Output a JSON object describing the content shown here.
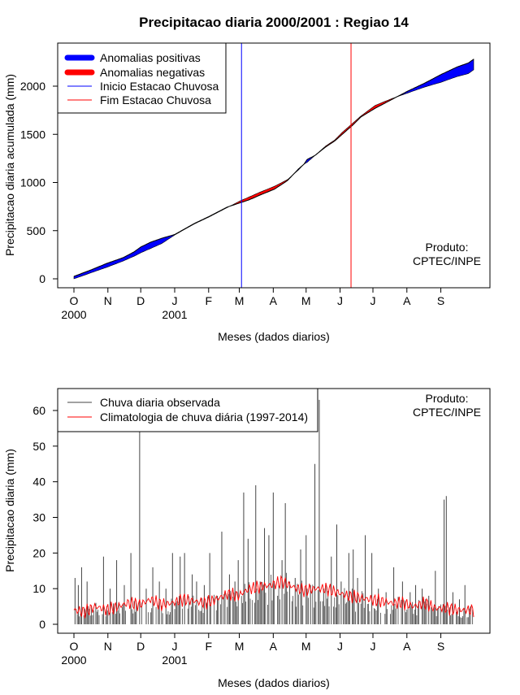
{
  "title": "Precipitacao diaria 2000/2001 : Regiao 14",
  "credit": {
    "line1": "Produto:",
    "line2": "CPTEC/INPE"
  },
  "month_ticks": [
    "O",
    "N",
    "D",
    "J",
    "F",
    "M",
    "A",
    "M",
    "J",
    "J",
    "A",
    "S"
  ],
  "year_labels": [
    "2000",
    "2001"
  ],
  "colors": {
    "positive": "#0000ff",
    "negative": "#ff0000",
    "onset": "#0000ff",
    "end": "#ff0000",
    "observed": "#444444",
    "climatology": "#ff0000"
  },
  "chart_data": [
    {
      "type": "area",
      "title": "Precipitacao diaria 2000/2001 : Regiao 14",
      "xlabel": "Meses (dados diarios)",
      "ylabel": "Precipitacao diaria acumulada (mm)",
      "x_unit": "day index (0 = 1 Oct 2000)",
      "xlim": [
        0,
        365
      ],
      "ylim": [
        0,
        2300
      ],
      "yticks": [
        0,
        500,
        1000,
        1500,
        2000
      ],
      "legend": [
        "Anomalias positivas",
        "Anomalias negativas",
        "Inicio Estacao Chuvosa",
        "Fim Estacao Chuvosa"
      ],
      "legend_position": "top-left",
      "climatology_cumulative": {
        "x": [
          0,
          15,
          30,
          45,
          55,
          61,
          70,
          80,
          92,
          110,
          123,
          140,
          152,
          160,
          170,
          183,
          195,
          200,
          205,
          210,
          213,
          220,
          230,
          238,
          245,
          255,
          262,
          275,
          290,
          305,
          320,
          335,
          350,
          360,
          365
        ],
        "y": [
          0,
          60,
          120,
          185,
          235,
          270,
          315,
          365,
          455,
          570,
          640,
          740,
          810,
          850,
          900,
          960,
          1030,
          1080,
          1130,
          1190,
          1210,
          1280,
          1380,
          1440,
          1520,
          1620,
          1690,
          1800,
          1870,
          1930,
          1990,
          2040,
          2100,
          2130,
          2170
        ]
      },
      "observed_cumulative": {
        "x": [
          0,
          15,
          30,
          45,
          55,
          61,
          70,
          80,
          92,
          110,
          123,
          140,
          152,
          160,
          170,
          183,
          195,
          200,
          205,
          210,
          213,
          220,
          230,
          238,
          245,
          255,
          262,
          275,
          290,
          305,
          320,
          335,
          350,
          360,
          365
        ],
        "y": [
          25,
          90,
          160,
          220,
          280,
          330,
          380,
          420,
          460,
          575,
          645,
          745,
          790,
          820,
          870,
          930,
          1020,
          1080,
          1140,
          1190,
          1240,
          1280,
          1370,
          1430,
          1500,
          1600,
          1680,
          1770,
          1860,
          1950,
          2030,
          2120,
          2200,
          2240,
          2280
        ]
      },
      "onset_day": 153,
      "end_day": 253
    },
    {
      "type": "bar",
      "title": "",
      "xlabel": "Meses (dados diarios)",
      "ylabel": "Precipitacao diaria (mm)",
      "x_unit": "day index (0 = 1 Oct 2000)",
      "xlim": [
        0,
        365
      ],
      "ylim": [
        0,
        65
      ],
      "yticks": [
        0,
        10,
        20,
        30,
        40,
        50,
        60
      ],
      "legend": [
        "Chuva diaria observada",
        "Climatologia de chuva diária (1997-2014)"
      ],
      "legend_position": "top-left",
      "observed_peaks": {
        "x": [
          1,
          4,
          7,
          12,
          20,
          27,
          33,
          39,
          46,
          52,
          57,
          60,
          66,
          72,
          78,
          84,
          90,
          97,
          101,
          108,
          112,
          119,
          124,
          131,
          135,
          142,
          147,
          150,
          155,
          159,
          166,
          170,
          174,
          178,
          182,
          186,
          190,
          193,
          197,
          202,
          207,
          212,
          216,
          220,
          224,
          228,
          235,
          240,
          244,
          251,
          255,
          259,
          266,
          272,
          278,
          285,
          292,
          300,
          307,
          312,
          318,
          324,
          330,
          338,
          340,
          346,
          352,
          357,
          362
        ],
        "y": [
          13,
          11,
          16,
          12,
          6,
          19,
          10,
          18,
          11,
          20,
          6,
          54,
          10,
          16,
          12,
          10,
          20,
          19,
          20,
          14,
          12,
          11,
          20,
          8,
          26,
          14,
          12,
          18,
          37,
          24,
          39,
          12,
          27,
          25,
          37,
          8,
          18,
          34,
          12,
          13,
          21,
          25,
          11,
          45,
          63,
          10,
          19,
          28,
          12,
          20,
          21,
          13,
          25,
          20,
          10,
          9,
          16,
          12,
          9,
          11,
          10,
          8,
          15,
          35,
          36,
          9,
          7,
          11,
          5
        ]
      },
      "climatology": {
        "x": [
          0,
          10,
          20,
          30,
          40,
          50,
          60,
          70,
          80,
          90,
          100,
          110,
          120,
          130,
          140,
          150,
          160,
          170,
          180,
          190,
          200,
          210,
          220,
          230,
          240,
          250,
          260,
          270,
          280,
          290,
          300,
          310,
          320,
          330,
          340,
          350,
          360,
          365
        ],
        "y": [
          4,
          3.5,
          5,
          4,
          5,
          6,
          5.5,
          7,
          5.5,
          6,
          7,
          6.5,
          6,
          7,
          8.5,
          8,
          10,
          10.5,
          11,
          12,
          10.5,
          9.5,
          10,
          10,
          9,
          8,
          7.5,
          7,
          6.5,
          6,
          6,
          5,
          6,
          4.5,
          4.5,
          4,
          4,
          4
        ]
      }
    }
  ]
}
